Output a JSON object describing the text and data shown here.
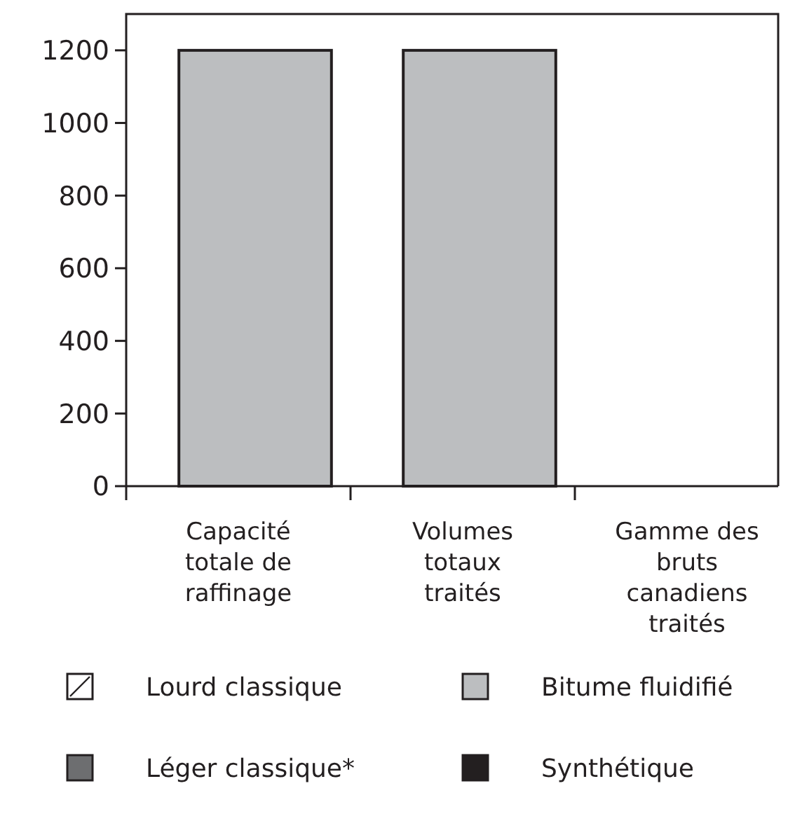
{
  "chart_data": {
    "type": "bar",
    "categories": [
      "Capacité totale de raffinage",
      "Volumes totaux traités",
      "Gamme des bruts canadiens traités"
    ],
    "series": [
      {
        "name": "Lourd classique",
        "color": "#ffffff",
        "values": [
          null,
          null,
          null
        ]
      },
      {
        "name": "Léger classique*",
        "color": "#6d6e70",
        "values": [
          null,
          null,
          null
        ]
      },
      {
        "name": "Bitume fluidifié",
        "color": "#bcbec0",
        "values": [
          1200,
          1200,
          null
        ]
      },
      {
        "name": "Synthétique",
        "color": "#231f20",
        "values": [
          null,
          null,
          null
        ]
      }
    ],
    "ylim": [
      0,
      1300
    ],
    "yticks": [
      0,
      200,
      400,
      600,
      800,
      1000,
      1200
    ],
    "grid": false,
    "legend": "bottom"
  }
}
